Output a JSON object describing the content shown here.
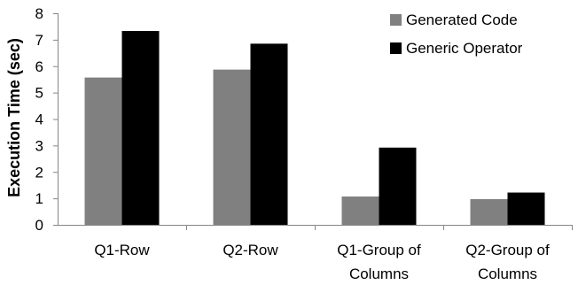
{
  "chart_data": {
    "type": "bar",
    "categories": [
      [
        "Q1-Row"
      ],
      [
        "Q2-Row"
      ],
      [
        "Q1-Group of",
        "Columns"
      ],
      [
        "Q2-Group of",
        "Columns"
      ]
    ],
    "series": [
      {
        "name": "Generated Code",
        "values": [
          5.57,
          5.87,
          1.07,
          0.97
        ],
        "color": "#808080"
      },
      {
        "name": "Generic Operator",
        "values": [
          7.33,
          6.85,
          2.92,
          1.22
        ],
        "color": "#000000"
      }
    ],
    "xlabel": "",
    "ylabel": "Execution Time (sec)",
    "ylim": [
      0,
      8
    ],
    "yticks": [
      "0",
      "1",
      "2",
      "3",
      "4",
      "5",
      "6",
      "7",
      "8"
    ],
    "grid": false,
    "legend_position": "top-right"
  }
}
